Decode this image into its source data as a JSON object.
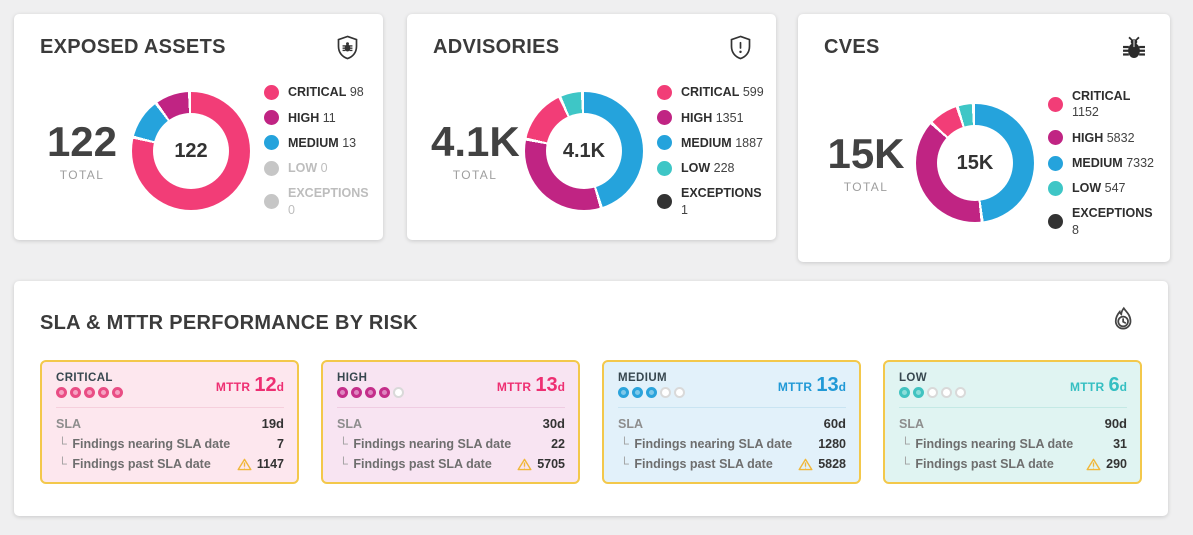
{
  "page": {
    "background": "#efeff0"
  },
  "summary_cards": [
    {
      "title": "EXPOSED ASSETS",
      "icon": "shield-bug-icon",
      "total_value": "122",
      "total_label": "TOTAL",
      "donut_center": "122",
      "donut_segments": [
        {
          "name": "critical",
          "value": 98,
          "color": "#f23d77"
        },
        {
          "name": "medium",
          "value": 13,
          "color": "#25a3dc"
        },
        {
          "name": "high",
          "value": 11,
          "color": "#c02483"
        }
      ],
      "legend": [
        {
          "label": "CRITICAL",
          "value": "98",
          "color": "#f23d77"
        },
        {
          "label": "HIGH",
          "value": "11",
          "color": "#c02483"
        },
        {
          "label": "MEDIUM",
          "value": "13",
          "color": "#25a3dc"
        },
        {
          "label": "LOW",
          "value": "0",
          "color": "#c6c6c6"
        },
        {
          "label": "EXCEPTIONS",
          "value": "0",
          "color": "#c6c6c6"
        }
      ]
    },
    {
      "title": "ADVISORIES",
      "icon": "shield-alert-icon",
      "total_value": "4.1K",
      "total_label": "TOTAL",
      "donut_center": "4.1K",
      "donut_segments": [
        {
          "name": "medium",
          "value": 1887,
          "color": "#25a3dc"
        },
        {
          "name": "high",
          "value": 1351,
          "color": "#c02483"
        },
        {
          "name": "critical",
          "value": 599,
          "color": "#f23d77"
        },
        {
          "name": "low",
          "value": 228,
          "color": "#3ec6c6"
        },
        {
          "name": "exceptions",
          "value": 1,
          "color": "#333333"
        }
      ],
      "legend": [
        {
          "label": "CRITICAL",
          "value": "599",
          "color": "#f23d77"
        },
        {
          "label": "HIGH",
          "value": "1351",
          "color": "#c02483"
        },
        {
          "label": "MEDIUM",
          "value": "1887",
          "color": "#25a3dc"
        },
        {
          "label": "LOW",
          "value": "228",
          "color": "#3ec6c6"
        },
        {
          "label": "EXCEPTIONS",
          "value": "1",
          "color": "#333333"
        }
      ]
    },
    {
      "title": "CVES",
      "icon": "bug-icon",
      "total_value": "15K",
      "total_label": "TOTAL",
      "donut_center": "15K",
      "donut_segments": [
        {
          "name": "medium",
          "value": 7332,
          "color": "#25a3dc"
        },
        {
          "name": "high",
          "value": 5832,
          "color": "#c02483"
        },
        {
          "name": "critical",
          "value": 1152,
          "color": "#f23d77"
        },
        {
          "name": "low",
          "value": 547,
          "color": "#3ec6c6"
        },
        {
          "name": "exceptions",
          "value": 8,
          "color": "#333333"
        }
      ],
      "legend": [
        {
          "label": "CRITICAL",
          "value": "1152",
          "color": "#f23d77"
        },
        {
          "label": "HIGH",
          "value": "5832",
          "color": "#c02483"
        },
        {
          "label": "MEDIUM",
          "value": "7332",
          "color": "#25a3dc"
        },
        {
          "label": "LOW",
          "value": "547",
          "color": "#3ec6c6"
        },
        {
          "label": "EXCEPTIONS",
          "value": "8",
          "color": "#333333"
        }
      ]
    }
  ],
  "sla_card": {
    "title": "SLA & MTTR PERFORMANCE BY RISK",
    "icon": "flame-clock-icon",
    "risk_cards": [
      {
        "label": "CRITICAL",
        "dots_filled": 5,
        "dots_total": 5,
        "mttr_label": "MTTR",
        "mttr_value": "12",
        "mttr_unit": "d",
        "sla_label": "SLA",
        "sla_value": "19d",
        "nearing_label": "Findings nearing SLA date",
        "nearing_value": "7",
        "past_label": "Findings past SLA date",
        "past_value": "1147",
        "theme": {
          "bg": "#fde7ee",
          "accent": "#ee2f72",
          "dot": "#e94d84",
          "dot_fill": "#f6a2c2",
          "divider": "#f6cfdc"
        }
      },
      {
        "label": "HIGH",
        "dots_filled": 4,
        "dots_total": 5,
        "mttr_label": "MTTR",
        "mttr_value": "13",
        "mttr_unit": "d",
        "sla_label": "SLA",
        "sla_value": "30d",
        "nearing_label": "Findings nearing SLA date",
        "nearing_value": "22",
        "past_label": "Findings past SLA date",
        "past_value": "5705",
        "theme": {
          "bg": "#f8e4f2",
          "accent": "#ee2f72",
          "dot": "#c42e8a",
          "dot_fill": "#de85c0",
          "divider": "#efccE2"
        }
      },
      {
        "label": "MEDIUM",
        "dots_filled": 3,
        "dots_total": 5,
        "mttr_label": "MTTR",
        "mttr_value": "13",
        "mttr_unit": "d",
        "sla_label": "SLA",
        "sla_value": "60d",
        "nearing_label": "Findings nearing SLA date",
        "nearing_value": "1280",
        "past_label": "Findings past SLA date",
        "past_value": "5828",
        "theme": {
          "bg": "#e2f1fa",
          "accent": "#2199d6",
          "dot": "#2ba3db",
          "dot_fill": "#7fc9ea",
          "divider": "#c9e4f2"
        }
      },
      {
        "label": "LOW",
        "dots_filled": 2,
        "dots_total": 5,
        "mttr_label": "MTTR",
        "mttr_value": "6",
        "mttr_unit": "d",
        "sla_label": "SLA",
        "sla_value": "90d",
        "nearing_label": "Findings nearing SLA date",
        "nearing_value": "31",
        "past_label": "Findings past SLA date",
        "past_value": "290",
        "theme": {
          "bg": "#e0f4f2",
          "accent": "#35bfc2",
          "dot": "#41c3c0",
          "dot_fill": "#8cdeda",
          "divider": "#c4e9e5"
        }
      }
    ]
  }
}
